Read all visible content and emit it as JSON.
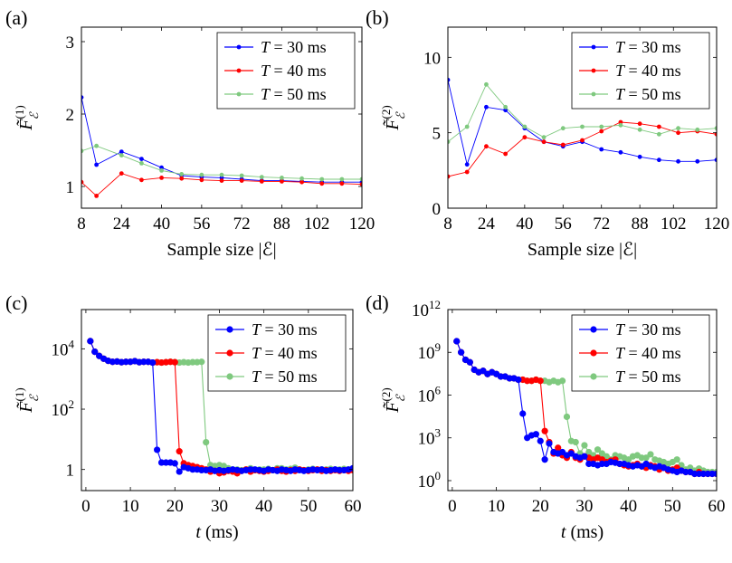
{
  "chart_data": [
    {
      "panel": "(a)",
      "type": "line",
      "marker_size": "small",
      "ylabel": "F̃ε(1)",
      "ylabel_main": "F",
      "ylabel_sub": "ℰ",
      "ylabel_sup": "(1)",
      "xlabel": "Sample size |ℰ|",
      "xlim": [
        8,
        120
      ],
      "ylim": [
        0.7,
        3.2
      ],
      "yscale": "linear",
      "xticks": [
        8,
        24,
        40,
        56,
        72,
        88,
        102,
        120
      ],
      "yticks": [
        1,
        2,
        3
      ],
      "ytick_labels": [
        "1",
        "2",
        "3"
      ],
      "legend": "top-right",
      "series": [
        {
          "name": "T = 30 ms",
          "color": "#0000ff",
          "x": [
            8,
            14,
            24,
            32,
            40,
            48,
            56,
            64,
            72,
            80,
            88,
            96,
            104,
            112,
            120
          ],
          "y": [
            2.23,
            1.3,
            1.48,
            1.38,
            1.26,
            1.15,
            1.13,
            1.12,
            1.1,
            1.08,
            1.08,
            1.07,
            1.06,
            1.06,
            1.06
          ]
        },
        {
          "name": "T = 40 ms",
          "color": "#ff0000",
          "x": [
            8,
            14,
            24,
            32,
            40,
            48,
            56,
            64,
            72,
            80,
            88,
            96,
            104,
            112,
            120
          ],
          "y": [
            1.06,
            0.87,
            1.18,
            1.09,
            1.12,
            1.11,
            1.09,
            1.08,
            1.08,
            1.07,
            1.07,
            1.06,
            1.04,
            1.04,
            1.03
          ]
        },
        {
          "name": "T = 50 ms",
          "color": "#7fc97f",
          "x": [
            8,
            14,
            24,
            32,
            40,
            48,
            56,
            64,
            72,
            80,
            88,
            96,
            104,
            112,
            120
          ],
          "y": [
            1.49,
            1.56,
            1.43,
            1.32,
            1.22,
            1.17,
            1.16,
            1.16,
            1.15,
            1.13,
            1.12,
            1.11,
            1.1,
            1.1,
            1.1
          ]
        }
      ]
    },
    {
      "panel": "(b)",
      "type": "line",
      "marker_size": "small",
      "ylabel": "F̃ε(2)",
      "ylabel_main": "F",
      "ylabel_sub": "ℰ",
      "ylabel_sup": "(2)",
      "xlabel": "Sample size |ℰ|",
      "xlim": [
        8,
        120
      ],
      "ylim": [
        0,
        12
      ],
      "yscale": "linear",
      "xticks": [
        8,
        24,
        40,
        56,
        72,
        88,
        102,
        120
      ],
      "yticks": [
        0,
        5,
        10
      ],
      "ytick_labels": [
        "0",
        "5",
        "10"
      ],
      "legend": "top-right",
      "series": [
        {
          "name": "T = 30 ms",
          "color": "#0000ff",
          "x": [
            8,
            16,
            24,
            32,
            40,
            48,
            56,
            64,
            72,
            80,
            88,
            96,
            104,
            112,
            120
          ],
          "y": [
            8.5,
            2.9,
            6.7,
            6.5,
            5.3,
            4.4,
            4.1,
            4.4,
            3.9,
            3.7,
            3.4,
            3.2,
            3.1,
            3.1,
            3.2
          ]
        },
        {
          "name": "T = 40 ms",
          "color": "#ff0000",
          "x": [
            8,
            16,
            24,
            32,
            40,
            48,
            56,
            64,
            72,
            80,
            88,
            96,
            104,
            112,
            120
          ],
          "y": [
            2.1,
            2.4,
            4.1,
            3.6,
            4.7,
            4.4,
            4.2,
            4.5,
            5.1,
            5.7,
            5.6,
            5.4,
            5.0,
            5.1,
            4.9
          ]
        },
        {
          "name": "T = 50 ms",
          "color": "#7fc97f",
          "x": [
            8,
            16,
            24,
            32,
            40,
            48,
            56,
            64,
            72,
            80,
            88,
            96,
            104,
            112,
            120
          ],
          "y": [
            4.4,
            5.4,
            8.2,
            6.7,
            5.4,
            4.7,
            5.3,
            5.4,
            5.4,
            5.5,
            5.2,
            4.9,
            5.3,
            5.2,
            5.3
          ]
        }
      ]
    },
    {
      "panel": "(c)",
      "type": "line",
      "marker_size": "large",
      "ylabel": "F̃ε(1)",
      "ylabel_main": "F",
      "ylabel_sub": "ℰ",
      "ylabel_sup": "(1)",
      "xlabel": "t (ms)",
      "xlim": [
        -1,
        60
      ],
      "ylim": [
        0.2,
        200000
      ],
      "yscale": "log",
      "xticks": [
        0,
        10,
        20,
        30,
        40,
        50,
        60
      ],
      "yticks": [
        1,
        100,
        10000
      ],
      "ytick_labels": [
        "1",
        "10^2",
        "10^4"
      ],
      "legend": "top-right",
      "series": [
        {
          "name": "T = 50 ms",
          "color": "#7fc97f",
          "x": [
            1,
            2,
            3,
            4,
            5,
            6,
            7,
            8,
            9,
            10,
            11,
            12,
            13,
            14,
            15,
            16,
            17,
            18,
            19,
            20,
            21,
            22,
            23,
            24,
            25,
            26,
            27,
            28,
            29,
            30,
            31,
            32,
            33,
            34,
            35,
            36,
            37,
            38,
            39,
            40,
            41,
            42,
            43,
            44,
            45,
            46,
            47,
            48,
            49,
            50,
            51,
            52,
            53,
            54,
            55,
            56,
            57,
            58,
            59,
            60
          ],
          "y": [
            18000,
            8000,
            5800,
            4700,
            4000,
            3700,
            3800,
            3600,
            3700,
            3700,
            3900,
            3600,
            3700,
            3700,
            3500,
            3600,
            3500,
            3600,
            3700,
            3600,
            3500,
            3600,
            3500,
            3600,
            3600,
            3700,
            8,
            1.4,
            1.3,
            1.4,
            1.3,
            1.1,
            1.0,
            1.0,
            0.95,
            1.0,
            1.1,
            0.95,
            1.0,
            1.0,
            1.05,
            0.95,
            1.1,
            1.1,
            1.0,
            1.05,
            1.15,
            1.0,
            0.95,
            1.0,
            1.05,
            1.0,
            1.0,
            1.0,
            1.05,
            1.0,
            1.0,
            1.05,
            1.0,
            1.05
          ]
        },
        {
          "name": "T = 40 ms",
          "color": "#ff0000",
          "x": [
            1,
            2,
            3,
            4,
            5,
            6,
            7,
            8,
            9,
            10,
            11,
            12,
            13,
            14,
            15,
            16,
            17,
            18,
            19,
            20,
            21,
            22,
            23,
            24,
            25,
            26,
            27,
            28,
            29,
            30,
            31,
            32,
            33,
            34,
            35,
            36,
            37,
            38,
            39,
            40,
            41,
            42,
            43,
            44,
            45,
            46,
            47,
            48,
            49,
            50,
            51,
            52,
            53,
            54,
            55,
            56,
            57,
            58,
            59,
            60
          ],
          "y": [
            18000,
            8000,
            5800,
            4700,
            4000,
            3700,
            3800,
            3600,
            3700,
            3700,
            3900,
            3600,
            3700,
            3700,
            3500,
            3600,
            3500,
            3600,
            3700,
            3600,
            4,
            1.6,
            1.4,
            1.3,
            1.2,
            1.1,
            1.0,
            0.85,
            0.9,
            0.75,
            0.8,
            0.9,
            0.85,
            0.75,
            0.9,
            1.0,
            0.85,
            0.95,
            0.9,
            0.85,
            0.9,
            0.95,
            1.0,
            0.9,
            0.85,
            0.95,
            0.9,
            1.0,
            0.95,
            0.9,
            0.95,
            1.0,
            0.9,
            0.95,
            0.9,
            0.95,
            0.9,
            0.95,
            0.9,
            0.95
          ]
        },
        {
          "name": "T = 30 ms",
          "color": "#0000ff",
          "x": [
            1,
            2,
            3,
            4,
            5,
            6,
            7,
            8,
            9,
            10,
            11,
            12,
            13,
            14,
            15,
            16,
            17,
            18,
            19,
            20,
            21,
            22,
            23,
            24,
            25,
            26,
            27,
            28,
            29,
            30,
            31,
            32,
            33,
            34,
            35,
            36,
            37,
            38,
            39,
            40,
            41,
            42,
            43,
            44,
            45,
            46,
            47,
            48,
            49,
            50,
            51,
            52,
            53,
            54,
            55,
            56,
            57,
            58,
            59,
            60
          ],
          "y": [
            18000,
            8000,
            5800,
            4700,
            4000,
            3700,
            3800,
            3600,
            3700,
            3700,
            3900,
            3600,
            3700,
            3700,
            3500,
            4.5,
            1.7,
            1.7,
            1.7,
            1.6,
            0.85,
            1.2,
            1.1,
            1.0,
            1.0,
            0.95,
            0.95,
            1.0,
            0.9,
            0.95,
            0.9,
            0.95,
            1.0,
            0.95,
            0.9,
            0.95,
            1.0,
            1.0,
            0.95,
            0.9,
            1.0,
            0.95,
            0.9,
            1.0,
            0.95,
            0.9,
            1.0,
            0.95,
            0.9,
            0.95,
            1.0,
            0.95,
            1.0,
            0.9,
            0.95,
            1.0,
            0.95,
            0.95,
            1.0,
            1.1
          ]
        }
      ]
    },
    {
      "panel": "(d)",
      "type": "line",
      "marker_size": "large",
      "ylabel": "F̃ε(2)",
      "ylabel_main": "F",
      "ylabel_sub": "ℰ",
      "ylabel_sup": "(2)",
      "xlabel": "t (ms)",
      "xlim": [
        -1,
        60
      ],
      "ylim": [
        0.2,
        1000000000000.0
      ],
      "yscale": "log",
      "xticks": [
        0,
        10,
        20,
        30,
        40,
        50,
        60
      ],
      "yticks": [
        1,
        1000,
        1000000,
        1000000000,
        1000000000000
      ],
      "ytick_labels": [
        "10^0",
        "10^3",
        "10^6",
        "10^9",
        "10^12"
      ],
      "legend": "top-right",
      "series": [
        {
          "name": "T = 50 ms",
          "color": "#7fc97f",
          "x": [
            1,
            2,
            3,
            4,
            5,
            6,
            7,
            8,
            9,
            10,
            11,
            12,
            13,
            14,
            15,
            16,
            17,
            18,
            19,
            20,
            21,
            22,
            23,
            24,
            25,
            26,
            27,
            28,
            29,
            30,
            31,
            32,
            33,
            34,
            35,
            36,
            37,
            38,
            39,
            40,
            41,
            42,
            43,
            44,
            45,
            46,
            47,
            48,
            49,
            50,
            51,
            52,
            53,
            54,
            55,
            56,
            57,
            58,
            59,
            60
          ],
          "y": [
            6000000000.0,
            1000000000.0,
            300000000.0,
            200000000.0,
            60000000.0,
            40000000.0,
            50000000.0,
            30000000.0,
            40000000.0,
            30000000.0,
            20000000.0,
            20000000.0,
            15000000.0,
            15000000.0,
            12000000.0,
            12000000.0,
            10000000.0,
            10000000.0,
            12000000.0,
            10000000.0,
            10000000.0,
            8000000.0,
            10000000.0,
            8000000.0,
            10000000.0,
            30000.0,
            600,
            500,
            80,
            300,
            100,
            60,
            150,
            80,
            50,
            30,
            60,
            50,
            40,
            30,
            50,
            60,
            40,
            40,
            70,
            30,
            25,
            20,
            15,
            20,
            30,
            12,
            6,
            8,
            5,
            7,
            5,
            4,
            4,
            4
          ]
        },
        {
          "name": "T = 40 ms",
          "color": "#ff0000",
          "x": [
            1,
            2,
            3,
            4,
            5,
            6,
            7,
            8,
            9,
            10,
            11,
            12,
            13,
            14,
            15,
            16,
            17,
            18,
            19,
            20,
            21,
            22,
            23,
            24,
            25,
            26,
            27,
            28,
            29,
            30,
            31,
            32,
            33,
            34,
            35,
            36,
            37,
            38,
            39,
            40,
            41,
            42,
            43,
            44,
            45,
            46,
            47,
            48,
            49,
            50,
            51,
            52,
            53,
            54,
            55,
            56,
            57,
            58,
            59,
            60
          ],
          "y": [
            6000000000.0,
            1000000000.0,
            300000000.0,
            200000000.0,
            60000000.0,
            40000000.0,
            50000000.0,
            30000000.0,
            40000000.0,
            30000000.0,
            20000000.0,
            20000000.0,
            15000000.0,
            15000000.0,
            12000000.0,
            12000000.0,
            10000000.0,
            10000000.0,
            12000000.0,
            10000000.0,
            3000,
            500,
            80,
            200,
            60,
            40,
            100,
            40,
            30,
            50,
            40,
            30,
            40,
            30,
            20,
            25,
            30,
            15,
            12,
            10,
            12,
            15,
            10,
            8,
            12,
            10,
            6,
            8,
            5,
            6,
            8,
            5,
            4,
            4,
            3,
            4,
            3,
            3,
            3,
            3
          ]
        },
        {
          "name": "T = 30 ms",
          "color": "#0000ff",
          "x": [
            1,
            2,
            3,
            4,
            5,
            6,
            7,
            8,
            9,
            10,
            11,
            12,
            13,
            14,
            15,
            16,
            17,
            18,
            19,
            20,
            21,
            22,
            23,
            24,
            25,
            26,
            27,
            28,
            29,
            30,
            31,
            32,
            33,
            34,
            35,
            36,
            37,
            38,
            39,
            40,
            41,
            42,
            43,
            44,
            45,
            46,
            47,
            48,
            49,
            50,
            51,
            52,
            53,
            54,
            55,
            56,
            57,
            58,
            59,
            60
          ],
          "y": [
            6000000000.0,
            1000000000.0,
            300000000.0,
            200000000.0,
            60000000.0,
            40000000.0,
            50000000.0,
            30000000.0,
            40000000.0,
            30000000.0,
            20000000.0,
            20000000.0,
            15000000.0,
            15000000.0,
            12000000.0,
            50000.0,
            1000,
            1500,
            1800,
            600,
            30,
            400,
            100,
            80,
            100,
            60,
            80,
            50,
            40,
            50,
            15,
            15,
            12,
            15,
            15,
            20,
            18,
            15,
            15,
            12,
            10,
            12,
            10,
            15,
            10,
            8,
            10,
            8,
            6,
            5,
            4,
            5,
            4,
            4,
            3,
            3,
            3,
            3,
            3,
            3
          ]
        }
      ]
    }
  ]
}
